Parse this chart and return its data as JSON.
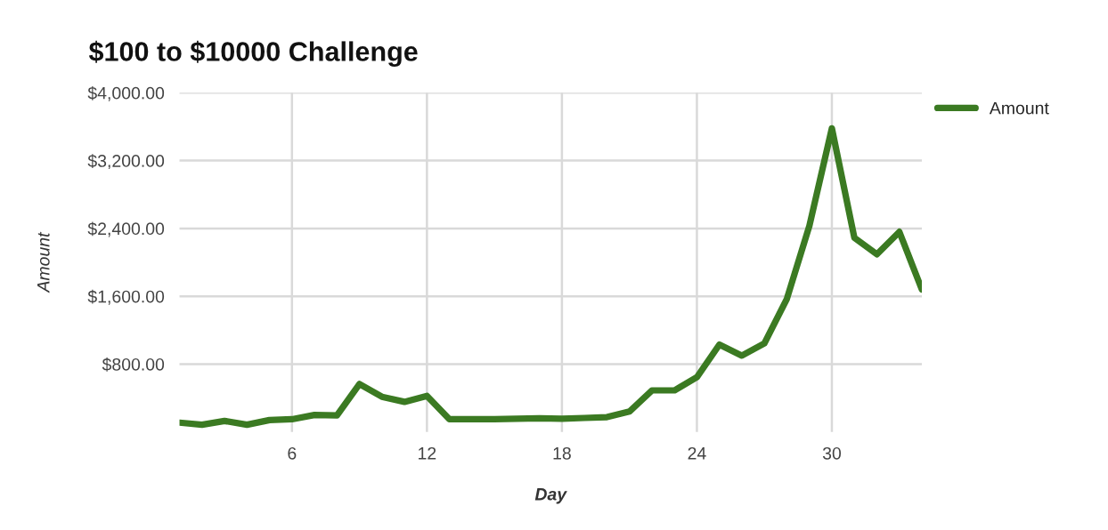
{
  "chart_data": {
    "type": "line",
    "title": "$100 to $10000 Challenge",
    "xlabel": "Day",
    "ylabel": "Amount",
    "x": [
      1,
      2,
      3,
      4,
      5,
      6,
      7,
      8,
      9,
      10,
      11,
      12,
      13,
      14,
      15,
      16,
      17,
      18,
      19,
      20,
      21,
      22,
      23,
      24,
      25,
      26,
      27,
      28,
      29,
      30,
      31,
      32,
      33,
      34
    ],
    "series": [
      {
        "name": "Amount",
        "color": "#3b7a22",
        "values": [
          110,
          85,
          130,
          85,
          140,
          150,
          200,
          195,
          565,
          415,
          355,
          425,
          150,
          150,
          150,
          155,
          160,
          155,
          165,
          175,
          240,
          490,
          490,
          645,
          1030,
          900,
          1045,
          1570,
          2430,
          3580,
          2290,
          2095,
          2360,
          1680
        ]
      }
    ],
    "xlim": [
      1,
      34
    ],
    "xticks": [
      6,
      12,
      18,
      24,
      30
    ],
    "ylim": [
      0,
      4000
    ],
    "yticks": [
      {
        "value": 800,
        "label": "$800.00"
      },
      {
        "value": 1600,
        "label": "$1,600.00"
      },
      {
        "value": 2400,
        "label": "$2,400.00"
      },
      {
        "value": 3200,
        "label": "$3,200.00"
      },
      {
        "value": 4000,
        "label": "$4,000.00"
      }
    ],
    "grid": true,
    "legend": "top right",
    "marker": "none",
    "line_style": "solid"
  }
}
